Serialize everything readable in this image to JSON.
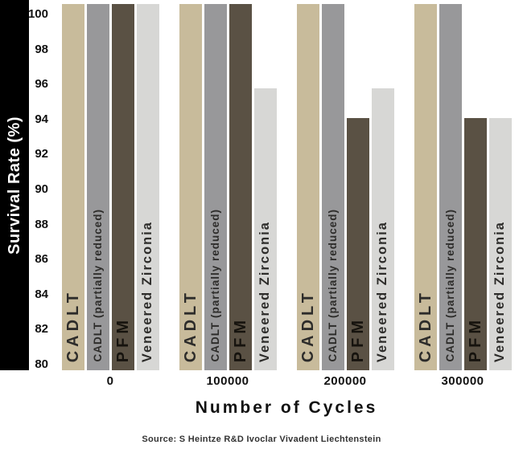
{
  "chart_data": {
    "type": "bar",
    "title": "",
    "ylabel": "Survival Rate (%)",
    "xlabel": "Number of Cycles",
    "source": "Source: S Heintze R&D Ivoclar Vivadent Liechtenstein",
    "ylim": [
      80,
      100
    ],
    "ytick_step": 2,
    "yticks": [
      100,
      98,
      96,
      94,
      92,
      90,
      88,
      86,
      84,
      82,
      80
    ],
    "categories": [
      "0",
      "100000",
      "200000",
      "300000"
    ],
    "series": [
      {
        "name": "CADLT",
        "color": "#c8bb9b",
        "values": [
          100,
          100,
          100,
          100
        ]
      },
      {
        "name": "CADLT (partially reduced)",
        "color": "#98989a",
        "values": [
          100,
          100,
          100,
          100
        ]
      },
      {
        "name": "PFM",
        "color": "#5a5144",
        "values": [
          100,
          100,
          94.1,
          94.1
        ]
      },
      {
        "name": "Veneered Zirconia",
        "color": "#d7d7d5",
        "values": [
          100,
          95.8,
          95.8,
          94.1
        ]
      }
    ],
    "grid": false,
    "legend_position": "labels-inside-bars"
  }
}
